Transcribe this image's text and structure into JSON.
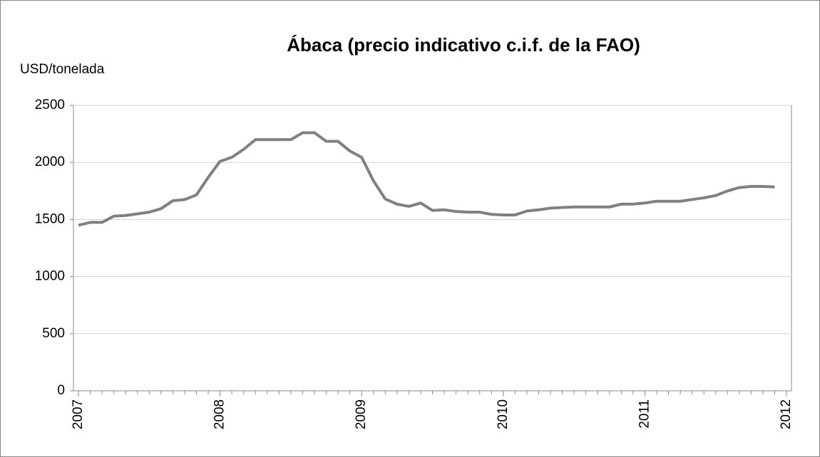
{
  "chart_data": {
    "type": "line",
    "title": "Ábaca (precio indicativo c.i.f. de la FAO)",
    "y_label": "USD/tonelada",
    "x": [
      2007,
      2007.083,
      2007.167,
      2007.25,
      2007.333,
      2007.417,
      2007.5,
      2007.583,
      2007.667,
      2007.75,
      2007.833,
      2007.917,
      2008,
      2008.083,
      2008.167,
      2008.25,
      2008.333,
      2008.417,
      2008.5,
      2008.583,
      2008.667,
      2008.75,
      2008.833,
      2008.917,
      2009,
      2009.083,
      2009.167,
      2009.25,
      2009.333,
      2009.417,
      2009.5,
      2009.583,
      2009.667,
      2009.75,
      2009.833,
      2009.917,
      2010,
      2010.083,
      2010.167,
      2010.25,
      2010.333,
      2010.417,
      2010.5,
      2010.583,
      2010.667,
      2010.75,
      2010.833,
      2010.917,
      2011,
      2011.083,
      2011.167,
      2011.25,
      2011.333,
      2011.417,
      2011.5,
      2011.583,
      2011.667,
      2011.75,
      2011.833,
      2011.917
    ],
    "series": [
      {
        "name": "Ábaca",
        "color": "#808080",
        "values": [
          1450,
          1475,
          1475,
          1530,
          1535,
          1550,
          1565,
          1595,
          1665,
          1675,
          1715,
          1870,
          2010,
          2045,
          2115,
          2200,
          2200,
          2200,
          2200,
          2260,
          2260,
          2185,
          2185,
          2100,
          2045,
          1840,
          1680,
          1635,
          1615,
          1645,
          1580,
          1585,
          1570,
          1565,
          1565,
          1545,
          1540,
          1540,
          1575,
          1585,
          1600,
          1605,
          1610,
          1610,
          1610,
          1610,
          1635,
          1635,
          1645,
          1660,
          1660,
          1660,
          1675,
          1690,
          1710,
          1750,
          1780,
          1790,
          1790,
          1785
        ]
      }
    ],
    "xlim": [
      2007,
      2012
    ],
    "xticks": [
      2007,
      2008,
      2009,
      2010,
      2011,
      2012
    ],
    "minor_ticks_per_interval": 12,
    "ylim": [
      0,
      2500
    ],
    "yticks": [
      0,
      500,
      1000,
      1500,
      2000,
      2500
    ],
    "grid": true
  }
}
